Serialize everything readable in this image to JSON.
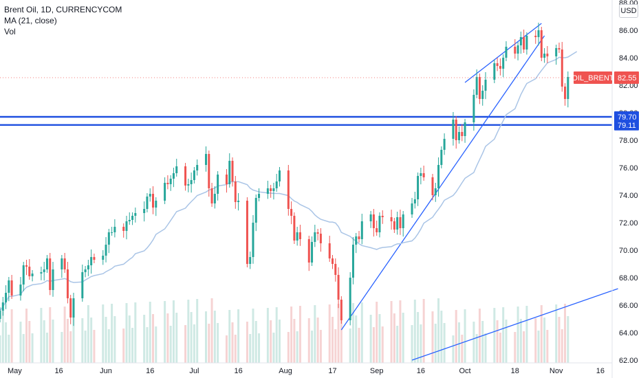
{
  "legend": {
    "symbol": "Brent Oil, 1D, CURRENCYCOM",
    "ma": "MA (21, close)",
    "vol": "Vol"
  },
  "currency": "USD",
  "colors": {
    "up": "#26a69a",
    "down": "#ef5350",
    "up_vol": "#cfe9e4",
    "down_vol": "#f6d3d3",
    "ma": "#a9c4e6",
    "trendline": "#2962ff",
    "hline": "#1e4fe0",
    "price_badge": "#ef5350"
  },
  "price_badge": {
    "label": "OIL_BRENT",
    "value": "82.55"
  },
  "hline_badges": [
    "79.70",
    "79.11"
  ],
  "chart_data": {
    "type": "candlestick",
    "symbol": "Brent Oil",
    "interval": "1D",
    "y_ticks": [
      "62.00",
      "64.00",
      "66.00",
      "68.00",
      "70.00",
      "72.00",
      "74.00",
      "76.00",
      "78.00",
      "80.00",
      "82.00",
      "84.00",
      "86.00",
      "88.00"
    ],
    "ylim": [
      61.8,
      88.2
    ],
    "x_ticks": [
      {
        "label": "May",
        "date": "2021-05-01"
      },
      {
        "label": "16",
        "date": "2021-05-16"
      },
      {
        "label": "Jun",
        "date": "2021-06-01"
      },
      {
        "label": "16",
        "date": "2021-06-16"
      },
      {
        "label": "Jul",
        "date": "2021-07-01"
      },
      {
        "label": "16",
        "date": "2021-07-16"
      },
      {
        "label": "Aug",
        "date": "2021-08-01"
      },
      {
        "label": "17",
        "date": "2021-08-17"
      },
      {
        "label": "Sep",
        "date": "2021-09-01"
      },
      {
        "label": "16",
        "date": "2021-09-16"
      },
      {
        "label": "Oct",
        "date": "2021-10-01"
      },
      {
        "label": "18",
        "date": "2021-10-18"
      },
      {
        "label": "Nov",
        "date": "2021-11-01"
      },
      {
        "label": "16",
        "date": "2021-11-16"
      }
    ],
    "xlim": [
      "2021-04-26",
      "2021-11-20"
    ],
    "close_series": [
      {
        "date": "2021-04-26",
        "close": 65.6
      },
      {
        "date": "2021-04-27",
        "close": 66.2
      },
      {
        "date": "2021-04-28",
        "close": 66.9
      },
      {
        "date": "2021-04-29",
        "close": 67.8
      },
      {
        "date": "2021-04-30",
        "close": 66.7
      },
      {
        "date": "2021-05-03",
        "close": 67.5
      },
      {
        "date": "2021-05-04",
        "close": 68.9
      },
      {
        "date": "2021-05-05",
        "close": 68.8
      },
      {
        "date": "2021-05-06",
        "close": 68.1
      },
      {
        "date": "2021-05-07",
        "close": 68.3
      },
      {
        "date": "2021-05-10",
        "close": 68.4
      },
      {
        "date": "2021-05-11",
        "close": 68.6
      },
      {
        "date": "2021-05-12",
        "close": 69.4
      },
      {
        "date": "2021-05-13",
        "close": 67.1
      },
      {
        "date": "2021-05-14",
        "close": 68.6
      },
      {
        "date": "2021-05-17",
        "close": 69.4
      },
      {
        "date": "2021-05-18",
        "close": 68.6
      },
      {
        "date": "2021-05-19",
        "close": 66.5
      },
      {
        "date": "2021-05-20",
        "close": 65.1
      },
      {
        "date": "2021-05-21",
        "close": 66.5
      },
      {
        "date": "2021-05-24",
        "close": 68.4
      },
      {
        "date": "2021-05-25",
        "close": 68.6
      },
      {
        "date": "2021-05-26",
        "close": 68.9
      },
      {
        "date": "2021-05-27",
        "close": 69.5
      },
      {
        "date": "2021-05-28",
        "close": 69.3
      },
      {
        "date": "2021-05-31",
        "close": 69.6
      },
      {
        "date": "2021-06-01",
        "close": 70.4
      },
      {
        "date": "2021-06-02",
        "close": 71.3
      },
      {
        "date": "2021-06-03",
        "close": 71.3
      },
      {
        "date": "2021-06-04",
        "close": 71.7
      },
      {
        "date": "2021-06-07",
        "close": 71.4
      },
      {
        "date": "2021-06-08",
        "close": 72.1
      },
      {
        "date": "2021-06-09",
        "close": 72.2
      },
      {
        "date": "2021-06-10",
        "close": 72.5
      },
      {
        "date": "2021-06-11",
        "close": 72.7
      },
      {
        "date": "2021-06-14",
        "close": 73.0
      },
      {
        "date": "2021-06-15",
        "close": 73.9
      },
      {
        "date": "2021-06-16",
        "close": 74.1
      },
      {
        "date": "2021-06-17",
        "close": 73.1
      },
      {
        "date": "2021-06-18",
        "close": 73.6
      },
      {
        "date": "2021-06-21",
        "close": 74.9
      },
      {
        "date": "2021-06-22",
        "close": 74.8
      },
      {
        "date": "2021-06-23",
        "close": 75.2
      },
      {
        "date": "2021-06-24",
        "close": 75.6
      },
      {
        "date": "2021-06-25",
        "close": 76.1
      },
      {
        "date": "2021-06-28",
        "close": 74.7
      },
      {
        "date": "2021-06-29",
        "close": 74.8
      },
      {
        "date": "2021-06-30",
        "close": 75.1
      },
      {
        "date": "2021-07-01",
        "close": 75.8
      },
      {
        "date": "2021-07-02",
        "close": 76.2
      },
      {
        "date": "2021-07-05",
        "close": 77.0
      },
      {
        "date": "2021-07-06",
        "close": 74.5
      },
      {
        "date": "2021-07-07",
        "close": 73.4
      },
      {
        "date": "2021-07-08",
        "close": 74.1
      },
      {
        "date": "2021-07-09",
        "close": 75.5
      },
      {
        "date": "2021-07-12",
        "close": 74.8
      },
      {
        "date": "2021-07-13",
        "close": 76.5
      },
      {
        "date": "2021-07-14",
        "close": 75.0
      },
      {
        "date": "2021-07-15",
        "close": 73.5
      },
      {
        "date": "2021-07-16",
        "close": 73.6
      },
      {
        "date": "2021-07-19",
        "close": 69.0
      },
      {
        "date": "2021-07-20",
        "close": 69.5
      },
      {
        "date": "2021-07-21",
        "close": 72.0
      },
      {
        "date": "2021-07-22",
        "close": 73.8
      },
      {
        "date": "2021-07-23",
        "close": 74.1
      },
      {
        "date": "2021-07-26",
        "close": 74.5
      },
      {
        "date": "2021-07-27",
        "close": 74.3
      },
      {
        "date": "2021-07-28",
        "close": 74.5
      },
      {
        "date": "2021-07-29",
        "close": 75.0
      },
      {
        "date": "2021-07-30",
        "close": 75.8
      },
      {
        "date": "2021-08-02",
        "close": 73.0
      },
      {
        "date": "2021-08-03",
        "close": 72.5
      },
      {
        "date": "2021-08-04",
        "close": 70.7
      },
      {
        "date": "2021-08-05",
        "close": 71.3
      },
      {
        "date": "2021-08-06",
        "close": 70.8
      },
      {
        "date": "2021-08-09",
        "close": 69.1
      },
      {
        "date": "2021-08-10",
        "close": 70.6
      },
      {
        "date": "2021-08-11",
        "close": 71.3
      },
      {
        "date": "2021-08-12",
        "close": 71.2
      },
      {
        "date": "2021-08-13",
        "close": 70.5
      },
      {
        "date": "2021-08-16",
        "close": 69.4
      },
      {
        "date": "2021-08-17",
        "close": 69.0
      },
      {
        "date": "2021-08-18",
        "close": 68.2
      },
      {
        "date": "2021-08-19",
        "close": 66.4
      },
      {
        "date": "2021-08-20",
        "close": 64.9
      },
      {
        "date": "2021-08-23",
        "close": 68.0
      },
      {
        "date": "2021-08-24",
        "close": 70.4
      },
      {
        "date": "2021-08-25",
        "close": 71.0
      },
      {
        "date": "2021-08-26",
        "close": 70.8
      },
      {
        "date": "2021-08-27",
        "close": 72.1
      },
      {
        "date": "2021-08-30",
        "close": 72.6
      },
      {
        "date": "2021-08-31",
        "close": 71.6
      },
      {
        "date": "2021-09-01",
        "close": 71.3
      },
      {
        "date": "2021-09-02",
        "close": 72.5
      },
      {
        "date": "2021-09-03",
        "close": 72.4
      },
      {
        "date": "2021-09-06",
        "close": 72.1
      },
      {
        "date": "2021-09-07",
        "close": 71.5
      },
      {
        "date": "2021-09-08",
        "close": 72.4
      },
      {
        "date": "2021-09-09",
        "close": 71.6
      },
      {
        "date": "2021-09-10",
        "close": 72.6
      },
      {
        "date": "2021-09-13",
        "close": 73.4
      },
      {
        "date": "2021-09-14",
        "close": 73.7
      },
      {
        "date": "2021-09-15",
        "close": 75.4
      },
      {
        "date": "2021-09-16",
        "close": 75.6
      },
      {
        "date": "2021-09-17",
        "close": 75.3
      },
      {
        "date": "2021-09-20",
        "close": 74.0
      },
      {
        "date": "2021-09-21",
        "close": 74.5
      },
      {
        "date": "2021-09-22",
        "close": 76.2
      },
      {
        "date": "2021-09-23",
        "close": 77.3
      },
      {
        "date": "2021-09-24",
        "close": 78.1
      },
      {
        "date": "2021-09-27",
        "close": 79.5
      },
      {
        "date": "2021-09-28",
        "close": 78.0
      },
      {
        "date": "2021-09-29",
        "close": 78.6
      },
      {
        "date": "2021-09-30",
        "close": 78.3
      },
      {
        "date": "2021-10-01",
        "close": 79.3
      },
      {
        "date": "2021-10-04",
        "close": 81.3
      },
      {
        "date": "2021-10-05",
        "close": 82.6
      },
      {
        "date": "2021-10-06",
        "close": 81.0
      },
      {
        "date": "2021-10-07",
        "close": 81.6
      },
      {
        "date": "2021-10-08",
        "close": 82.4
      },
      {
        "date": "2021-10-11",
        "close": 83.6
      },
      {
        "date": "2021-10-12",
        "close": 83.4
      },
      {
        "date": "2021-10-13",
        "close": 83.2
      },
      {
        "date": "2021-10-14",
        "close": 84.0
      },
      {
        "date": "2021-10-15",
        "close": 84.8
      },
      {
        "date": "2021-10-18",
        "close": 84.3
      },
      {
        "date": "2021-10-19",
        "close": 84.9
      },
      {
        "date": "2021-10-20",
        "close": 85.5
      },
      {
        "date": "2021-10-21",
        "close": 84.6
      },
      {
        "date": "2021-10-22",
        "close": 85.6
      },
      {
        "date": "2021-10-25",
        "close": 85.5
      },
      {
        "date": "2021-10-26",
        "close": 86.0
      },
      {
        "date": "2021-10-27",
        "close": 84.0
      },
      {
        "date": "2021-10-28",
        "close": 84.3
      },
      {
        "date": "2021-10-29",
        "close": 84.1
      },
      {
        "date": "2021-11-01",
        "close": 84.7
      },
      {
        "date": "2021-11-02",
        "close": 84.6
      },
      {
        "date": "2021-11-03",
        "close": 81.9
      },
      {
        "date": "2021-11-04",
        "close": 81.0
      },
      {
        "date": "2021-11-05",
        "close": 82.6
      }
    ],
    "last_price": 82.55,
    "horizontal_levels": [
      79.7,
      79.11
    ],
    "annotations": "trendlines drawn by user; MA(21) overlay; volume histogram at bottom"
  }
}
